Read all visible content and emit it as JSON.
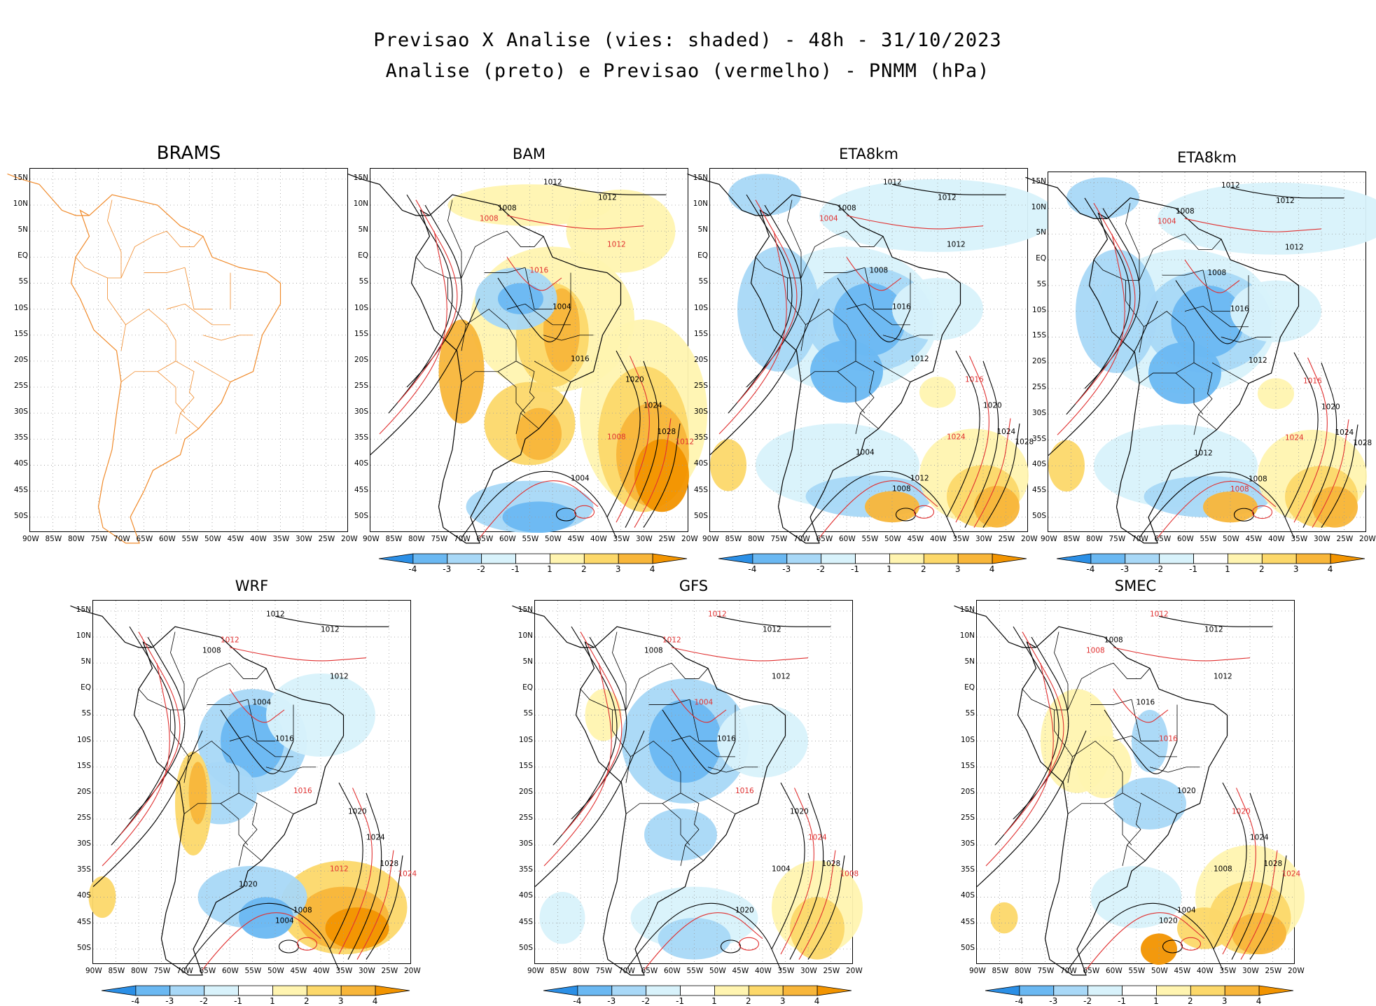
{
  "header": {
    "line1": "Previsao X Analise (vies: shaded) - 48h - 31/10/2023",
    "line2": "Analise (preto) e Previsao (vermelho) - PNMM (hPa)"
  },
  "axes": {
    "lat_labels": [
      "15N",
      "10N",
      "5N",
      "EQ",
      "5S",
      "10S",
      "15S",
      "20S",
      "25S",
      "30S",
      "35S",
      "40S",
      "45S",
      "50S"
    ],
    "lon_labels": [
      "90W",
      "85W",
      "80W",
      "75W",
      "70W",
      "65W",
      "60W",
      "55W",
      "50W",
      "45W",
      "40W",
      "35W",
      "30W",
      "25W",
      "20W"
    ]
  },
  "colorbar": {
    "labels": [
      "-4",
      "-3",
      "-2",
      "-1",
      "1",
      "2",
      "3",
      "4"
    ],
    "colors": [
      "#2b8fe6",
      "#6ab8f2",
      "#a8d8f7",
      "#d8f2fb",
      "#ffffff",
      "#fff4b0",
      "#fcd86a",
      "#f8b63a",
      "#f29400"
    ]
  },
  "colors": {
    "analysis_contour": "#000000",
    "forecast_contour": "#e03030",
    "coastline_brams": "#f08a2a",
    "grid": "#9a9a9a"
  },
  "panels": [
    {
      "name": "BRAMS",
      "bias": "none",
      "labels": []
    },
    {
      "name": "BAM",
      "bias": "warm",
      "labels": [
        {
          "t": "1012",
          "c": "k"
        },
        {
          "t": "1012",
          "c": "k"
        },
        {
          "t": "1008",
          "c": "k"
        },
        {
          "t": "1008",
          "c": "r"
        },
        {
          "t": "1012",
          "c": "r"
        },
        {
          "t": "1016",
          "c": "r"
        },
        {
          "t": "1004",
          "c": "k"
        },
        {
          "t": "1016",
          "c": "k"
        },
        {
          "t": "1020",
          "c": "k"
        },
        {
          "t": "1024",
          "c": "k"
        },
        {
          "t": "1028",
          "c": "k"
        },
        {
          "t": "1012",
          "c": "r"
        },
        {
          "t": "1008",
          "c": "r"
        },
        {
          "t": "1004",
          "c": "k"
        }
      ]
    },
    {
      "name": "ETA8km",
      "bias": "cold",
      "labels": [
        {
          "t": "1012",
          "c": "k"
        },
        {
          "t": "1012",
          "c": "k"
        },
        {
          "t": "1008",
          "c": "k"
        },
        {
          "t": "1004",
          "c": "r"
        },
        {
          "t": "1012",
          "c": "k"
        },
        {
          "t": "1008",
          "c": "k"
        },
        {
          "t": "1016",
          "c": "k"
        },
        {
          "t": "1012",
          "c": "k"
        },
        {
          "t": "1016",
          "c": "r"
        },
        {
          "t": "1020",
          "c": "k"
        },
        {
          "t": "1024",
          "c": "k"
        },
        {
          "t": "1028",
          "c": "k"
        },
        {
          "t": "1024",
          "c": "r"
        },
        {
          "t": "1012",
          "c": "k"
        },
        {
          "t": "1008",
          "c": "k"
        },
        {
          "t": "1004",
          "c": "k"
        }
      ]
    },
    {
      "name": "ETA8km",
      "bias": "cold",
      "labels": [
        {
          "t": "1012",
          "c": "k"
        },
        {
          "t": "1012",
          "c": "k"
        },
        {
          "t": "1008",
          "c": "k"
        },
        {
          "t": "1004",
          "c": "r"
        },
        {
          "t": "1012",
          "c": "k"
        },
        {
          "t": "1008",
          "c": "k"
        },
        {
          "t": "1016",
          "c": "k"
        },
        {
          "t": "1012",
          "c": "k"
        },
        {
          "t": "1016",
          "c": "r"
        },
        {
          "t": "1020",
          "c": "k"
        },
        {
          "t": "1024",
          "c": "k"
        },
        {
          "t": "1028",
          "c": "k"
        },
        {
          "t": "1024",
          "c": "r"
        },
        {
          "t": "1008",
          "c": "k"
        },
        {
          "t": "1008",
          "c": "r"
        },
        {
          "t": "1012",
          "c": "k"
        }
      ]
    },
    {
      "name": "WRF",
      "bias": "mixed",
      "labels": [
        {
          "t": "1012",
          "c": "k"
        },
        {
          "t": "1012",
          "c": "k"
        },
        {
          "t": "1012",
          "c": "r"
        },
        {
          "t": "1008",
          "c": "k"
        },
        {
          "t": "1012",
          "c": "k"
        },
        {
          "t": "1004",
          "c": "k"
        },
        {
          "t": "1016",
          "c": "k"
        },
        {
          "t": "1016",
          "c": "r"
        },
        {
          "t": "1020",
          "c": "k"
        },
        {
          "t": "1024",
          "c": "k"
        },
        {
          "t": "1028",
          "c": "k"
        },
        {
          "t": "1024",
          "c": "r"
        },
        {
          "t": "1012",
          "c": "r"
        },
        {
          "t": "1008",
          "c": "k"
        },
        {
          "t": "1004",
          "c": "k"
        },
        {
          "t": "1020",
          "c": "k"
        }
      ]
    },
    {
      "name": "GFS",
      "bias": "coldmild",
      "labels": [
        {
          "t": "1012",
          "c": "r"
        },
        {
          "t": "1012",
          "c": "k"
        },
        {
          "t": "1012",
          "c": "r"
        },
        {
          "t": "1008",
          "c": "k"
        },
        {
          "t": "1012",
          "c": "k"
        },
        {
          "t": "1004",
          "c": "r"
        },
        {
          "t": "1016",
          "c": "k"
        },
        {
          "t": "1016",
          "c": "r"
        },
        {
          "t": "1020",
          "c": "k"
        },
        {
          "t": "1024",
          "c": "r"
        },
        {
          "t": "1028",
          "c": "k"
        },
        {
          "t": "1008",
          "c": "r"
        },
        {
          "t": "1004",
          "c": "k"
        },
        {
          "t": "1020",
          "c": "k"
        }
      ]
    },
    {
      "name": "SMEC",
      "bias": "mixedwarm",
      "labels": [
        {
          "t": "1012",
          "c": "r"
        },
        {
          "t": "1012",
          "c": "k"
        },
        {
          "t": "1008",
          "c": "k"
        },
        {
          "t": "1008",
          "c": "r"
        },
        {
          "t": "1012",
          "c": "k"
        },
        {
          "t": "1016",
          "c": "k"
        },
        {
          "t": "1016",
          "c": "r"
        },
        {
          "t": "1020",
          "c": "k"
        },
        {
          "t": "1020",
          "c": "r"
        },
        {
          "t": "1024",
          "c": "k"
        },
        {
          "t": "1028",
          "c": "k"
        },
        {
          "t": "1024",
          "c": "r"
        },
        {
          "t": "1008",
          "c": "k"
        },
        {
          "t": "1004",
          "c": "k"
        },
        {
          "t": "1020",
          "c": "k"
        }
      ]
    }
  ]
}
